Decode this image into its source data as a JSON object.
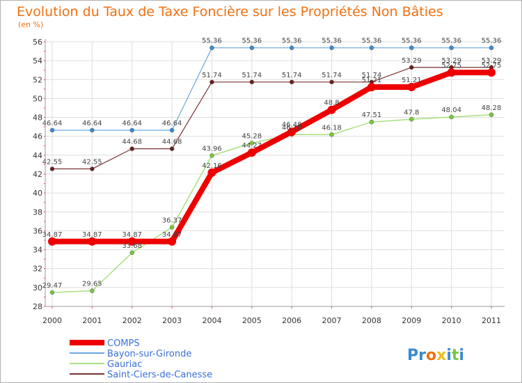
{
  "chart_data": {
    "type": "line",
    "title": "Evolution du Taux de Taxe Foncière sur les Propriétés Non Bâties",
    "subtitle": "(en %)",
    "xlabel": "",
    "ylabel": "",
    "ylim": [
      28,
      56
    ],
    "yticks": [
      28,
      30,
      32,
      34,
      36,
      38,
      40,
      42,
      44,
      46,
      48,
      50,
      52,
      54,
      56
    ],
    "x": [
      "2000",
      "2001",
      "2002",
      "2003",
      "2004",
      "2005",
      "2006",
      "2007",
      "2008",
      "2009",
      "2010",
      "2011"
    ],
    "grid": true,
    "legend_position": "bottom-left",
    "series": [
      {
        "name": "Bayon-sur-Gironde",
        "color": "#6aa8e0",
        "marker": "#3a8ad0",
        "width": 1.2,
        "values": [
          46.64,
          46.64,
          46.64,
          46.64,
          55.36,
          55.36,
          55.36,
          55.36,
          55.36,
          55.36,
          55.36,
          55.36
        ],
        "labels": [
          "46.64",
          "46.64",
          "46.64",
          "46.64",
          "55.36",
          "55.36",
          "55.36",
          "55.36",
          "55.36",
          "55.36",
          "55.36",
          "55.36"
        ]
      },
      {
        "name": "Saint-Ciers-de-Canesse",
        "color": "#7a3232",
        "marker": "#6a1e1e",
        "width": 1.2,
        "values": [
          42.55,
          42.55,
          44.68,
          44.68,
          51.74,
          51.74,
          51.74,
          51.74,
          51.74,
          53.29,
          53.29,
          53.29
        ],
        "labels": [
          "42.55",
          "42.55",
          "44.68",
          "44.68",
          "51.74",
          "51.74",
          "51.74",
          "51.74",
          "51.74",
          "53.29",
          "53.29",
          "53.29"
        ]
      },
      {
        "name": "Gauriac",
        "color": "#a8e080",
        "marker": "#78c840",
        "width": 1.5,
        "values": [
          29.47,
          29.65,
          33.68,
          36.37,
          43.96,
          45.28,
          46.18,
          46.18,
          47.51,
          47.8,
          48.04,
          48.28
        ],
        "labels": [
          "29.47",
          "29.65",
          "33.68",
          "36.37",
          "43.96",
          "45.28",
          "46.18",
          "46.18",
          "47.51",
          "47.8",
          "48.04",
          "48.28"
        ]
      },
      {
        "name": "COMPS",
        "color": "#ee0000",
        "marker": "#ee0000",
        "width": 8,
        "values": [
          34.87,
          34.87,
          34.87,
          34.87,
          42.16,
          44.27,
          46.48,
          48.8,
          51.21,
          51.21,
          52.75,
          52.75
        ],
        "labels": [
          "34.87",
          "34.87",
          "34.87",
          "34.87",
          "42.16",
          "44.27",
          "46.48",
          "48.8",
          "51.21",
          "51.21",
          "52.75",
          "52.75"
        ]
      }
    ],
    "legend": [
      "COMPS",
      "Bayon-sur-Gironde",
      "Gauriac",
      "Saint-Ciers-de-Canesse"
    ]
  },
  "logo": {
    "letters": [
      "P",
      "r",
      "o",
      "x",
      "i",
      "t",
      "i"
    ],
    "colors": [
      "#3a8ad0",
      "#3a8ad0",
      "#f07010",
      "#e8c020",
      "#3a8ad0",
      "#78c840",
      "#3a8ad0"
    ]
  }
}
